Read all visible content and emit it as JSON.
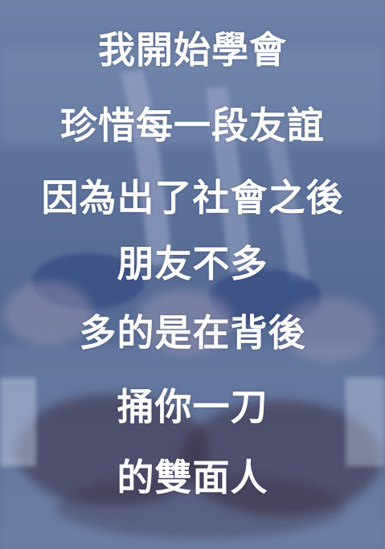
{
  "quote": {
    "lines": [
      "我開始學會",
      "珍惜每一段友誼",
      "因為出了社會之後",
      "朋友不多",
      "多的是在背後",
      "捅你一刀",
      "的雙面人"
    ]
  },
  "colors": {
    "text": "#ffffff",
    "overlay": "#5c7099"
  }
}
